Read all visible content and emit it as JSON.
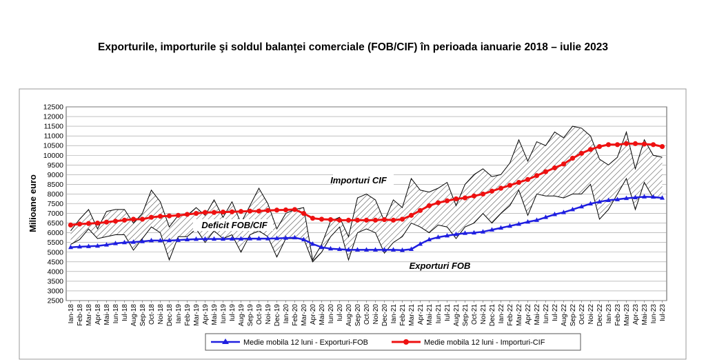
{
  "title": "Exporturile, importurile şi soldul balanţei comerciale (FOB/CIF) în perioada ianuarie 2018 – iulie 2023",
  "chart_data": {
    "type": "line",
    "ylabel": "Milioane  euro",
    "xlabel": "",
    "ylim": [
      2500,
      12500
    ],
    "ytick_step": 500,
    "grid": "horizontal",
    "legend_position": "bottom",
    "annotations": {
      "imports": "Importuri CIF",
      "deficit": "Deficit FOB/CIF",
      "exports": "Exporturi FOB"
    },
    "categories": [
      "Ian-18",
      "Feb-18",
      "Mar-18",
      "Apr-18",
      "Mai-18",
      "Iun-18",
      "Iul-18",
      "Aug-18",
      "Sep-18",
      "Oct-18",
      "Noi-18",
      "Dec-18",
      "Ian-19",
      "Feb-19",
      "Mar-19",
      "Apr-19",
      "Mai-19",
      "Iun-19",
      "Iul-19",
      "Aug-19",
      "Sep-19",
      "Oct-19",
      "Noi-19",
      "Dec-19",
      "Ian-20",
      "Feb-20",
      "Mar-20",
      "Apr-20",
      "Mai-20",
      "Iun-20",
      "Iul-20",
      "Aug-20",
      "Sep-20",
      "Oct-20",
      "Noi-20",
      "Dec-20",
      "Ian-21",
      "Feb-21",
      "Mar-21",
      "Apr-21",
      "Mai-21",
      "Iun-21",
      "Iul-21",
      "Aug-21",
      "Sep-21",
      "Oct-21",
      "Noi-21",
      "Dec-21",
      "Ian-22",
      "Feb-22",
      "Mar-22",
      "Apr-22",
      "Mai-22",
      "Iun-22",
      "Iul-22",
      "Aug-22",
      "Sep-22",
      "Oct-22",
      "Noi-22",
      "Dec-22",
      "Ian-23",
      "Feb-23",
      "Mar-23",
      "Apr-23",
      "Mai-23",
      "Iun-23",
      "Iul-23"
    ],
    "series": [
      {
        "name": "Medie mobila 12 luni - Exporturi-FOB",
        "color": "#1f1fe0",
        "marker": "triangle",
        "values": [
          5250,
          5280,
          5300,
          5320,
          5380,
          5450,
          5500,
          5520,
          5550,
          5600,
          5600,
          5600,
          5620,
          5650,
          5670,
          5680,
          5680,
          5680,
          5690,
          5690,
          5700,
          5700,
          5700,
          5710,
          5730,
          5750,
          5650,
          5420,
          5250,
          5180,
          5150,
          5120,
          5120,
          5120,
          5120,
          5120,
          5120,
          5100,
          5150,
          5420,
          5650,
          5770,
          5850,
          5920,
          5980,
          6000,
          6050,
          6150,
          6250,
          6350,
          6450,
          6560,
          6650,
          6800,
          6950,
          7050,
          7200,
          7350,
          7500,
          7600,
          7680,
          7720,
          7780,
          7820,
          7860,
          7850,
          7800
        ]
      },
      {
        "name": "Medie mobila 12 luni - Importuri-CIF",
        "color": "#ee1111",
        "marker": "circle",
        "values": [
          6400,
          6450,
          6480,
          6500,
          6550,
          6600,
          6650,
          6700,
          6700,
          6800,
          6850,
          6870,
          6900,
          6950,
          7000,
          7050,
          7050,
          7070,
          7080,
          7100,
          7120,
          7120,
          7150,
          7170,
          7180,
          7200,
          7000,
          6750,
          6700,
          6680,
          6650,
          6650,
          6650,
          6650,
          6650,
          6680,
          6650,
          6700,
          6900,
          7150,
          7400,
          7550,
          7650,
          7750,
          7800,
          7900,
          8000,
          8150,
          8300,
          8450,
          8600,
          8750,
          8950,
          9150,
          9350,
          9550,
          9850,
          10100,
          10300,
          10450,
          10550,
          10550,
          10600,
          10600,
          10580,
          10550,
          10450
        ]
      },
      {
        "name": "Exporturi FOB (lunar)",
        "color": "#000000",
        "values": [
          5400,
          5650,
          6200,
          5700,
          5800,
          5900,
          5900,
          5100,
          5700,
          6300,
          6000,
          4600,
          5800,
          5800,
          6200,
          5500,
          6100,
          5700,
          5900,
          5000,
          5900,
          6100,
          5800,
          4750,
          5700,
          5700,
          5700,
          4500,
          5000,
          5800,
          6300,
          4600,
          6000,
          6200,
          6000,
          4950,
          5500,
          5800,
          6500,
          6300,
          6000,
          6400,
          6300,
          5700,
          6300,
          6500,
          7000,
          6500,
          7000,
          7400,
          8200,
          6900,
          8000,
          7900,
          7900,
          7800,
          8000,
          8000,
          8500,
          6700,
          7200,
          8000,
          8800,
          7200,
          8600,
          7800,
          7800
        ]
      },
      {
        "name": "Importuri CIF (lunar)",
        "color": "#000000",
        "values": [
          6100,
          6700,
          7200,
          6200,
          7100,
          7200,
          7200,
          6500,
          7000,
          8200,
          7600,
          6300,
          6900,
          6900,
          7300,
          6900,
          7700,
          6800,
          7600,
          6500,
          7400,
          8300,
          7500,
          6200,
          7000,
          7200,
          7300,
          4600,
          5400,
          6600,
          6800,
          5800,
          7800,
          8000,
          7700,
          6600,
          7700,
          7300,
          8800,
          8200,
          8100,
          8300,
          8600,
          7400,
          8500,
          9000,
          9300,
          8900,
          9000,
          9600,
          10800,
          9700,
          10700,
          10500,
          11200,
          10900,
          11500,
          11400,
          11000,
          9800,
          9500,
          9900,
          11200,
          9300,
          10800,
          10000,
          9900
        ]
      }
    ],
    "tick_labels_y": [
      "2500",
      "3000",
      "3500",
      "4000",
      "4500",
      "5000",
      "5500",
      "6000",
      "6500",
      "7000",
      "7500",
      "8000",
      "8500",
      "9000",
      "9500",
      "10000",
      "10500",
      "11000",
      "11500",
      "12000",
      "12500"
    ]
  }
}
